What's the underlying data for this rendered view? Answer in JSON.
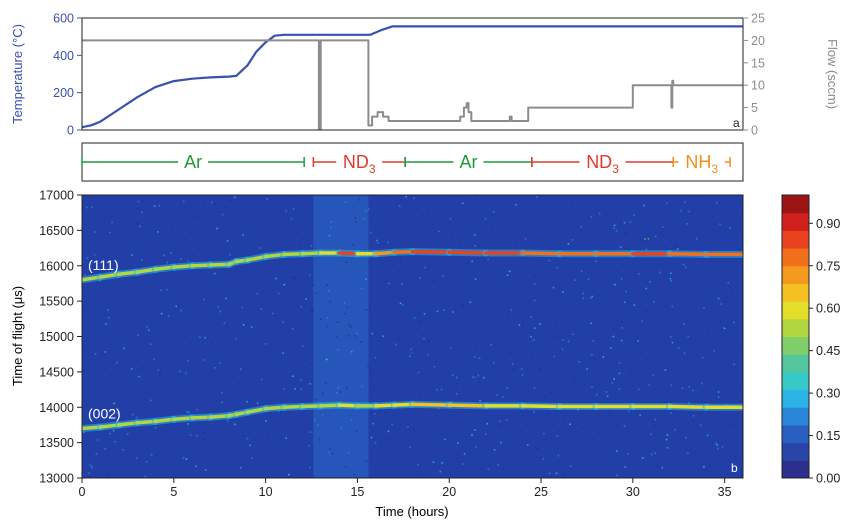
{
  "colors": {
    "temperature": "#3a50b0",
    "flow": "#8c8c8c",
    "ar": "#1f9a3a",
    "nd3": "#e23a2a",
    "nh3": "#f0901e",
    "axis": "#222222",
    "heat_background": "#223fa8",
    "heat_stripe": "#2a6ac6"
  },
  "chart_data": [
    {
      "type": "line",
      "panel_label": "a",
      "xlim": [
        0,
        36
      ],
      "ylabel_left": "Temperature (°C)",
      "ylabel_right": "Flow (sccm)",
      "ylim_left": [
        0,
        600
      ],
      "ylim_right": [
        0,
        25
      ],
      "yticks_left": [
        "0",
        "200",
        "400",
        "600"
      ],
      "yticks_right": [
        "0",
        "5",
        "10",
        "15",
        "20",
        "25"
      ],
      "series": [
        {
          "axis": "left",
          "x": [
            0,
            0.5,
            1,
            2,
            3,
            4,
            5,
            6,
            7,
            8,
            8.4,
            9,
            9.5,
            10,
            10.5,
            11,
            12,
            13,
            14,
            15,
            15.7,
            16.3,
            16.9,
            18,
            20,
            25,
            30,
            36
          ],
          "y": [
            15,
            25,
            45,
            110,
            175,
            230,
            262,
            275,
            282,
            286,
            290,
            345,
            420,
            470,
            505,
            510,
            510,
            510,
            510,
            510,
            510,
            535,
            555,
            555,
            555,
            555,
            555,
            555
          ]
        },
        {
          "axis": "right",
          "x": [
            0,
            12.9,
            12.9,
            13.0,
            13.0,
            15.6,
            15.6,
            15.8,
            15.8,
            16.1,
            16.1,
            16.4,
            16.4,
            16.7,
            16.7,
            17.0,
            17.0,
            20.6,
            20.6,
            20.8,
            20.8,
            20.95,
            20.95,
            21.05,
            21.05,
            21.2,
            21.2,
            21.3,
            21.3,
            23.3,
            23.3,
            23.4,
            23.4,
            24.3,
            24.3,
            30.0,
            30.0,
            32.1,
            32.1,
            32.15,
            32.15,
            32.2,
            32.2,
            36
          ],
          "y": [
            20,
            20,
            0,
            0,
            20,
            20,
            1,
            1,
            3,
            3,
            4,
            4,
            3,
            3,
            2,
            2,
            2,
            2,
            3,
            3,
            5,
            5,
            6,
            6,
            4,
            4,
            2,
            2,
            2,
            2,
            3,
            3,
            2,
            2,
            5,
            5,
            10,
            10,
            5,
            5,
            11,
            11,
            10,
            10
          ]
        }
      ]
    },
    {
      "type": "heatmap",
      "panel_label": "b",
      "xlabel": "Time (hours)",
      "ylabel": "Time of flight (μs)",
      "xlim": [
        0,
        36
      ],
      "ylim": [
        13000,
        17000
      ],
      "xticks": [
        "0",
        "5",
        "10",
        "15",
        "20",
        "25",
        "30",
        "35"
      ],
      "yticks": [
        "13000",
        "13500",
        "14000",
        "14500",
        "15000",
        "15500",
        "16000",
        "16500",
        "17000"
      ],
      "colorbar": {
        "range": [
          0,
          1
        ],
        "ticks": [
          "0.00",
          "0.15",
          "0.30",
          "0.45",
          "0.60",
          "0.75",
          "0.90"
        ],
        "colors": [
          "#2b2e8c",
          "#2a45a8",
          "#2a5fc2",
          "#2a86d8",
          "#2bb2e6",
          "#36c9c8",
          "#54c69e",
          "#80ce6a",
          "#b2d640",
          "#e2de2a",
          "#f4c022",
          "#f5981e",
          "#f0701c",
          "#e8421e",
          "#d0211c",
          "#9c1414"
        ]
      },
      "peaks": [
        {
          "label": "(111)",
          "x": [
            0,
            1,
            2,
            3,
            4,
            5,
            6,
            7,
            8,
            8.4,
            9,
            10,
            11,
            12,
            13,
            14,
            15,
            16,
            17,
            18,
            20,
            22,
            24,
            26,
            28,
            30,
            32,
            34,
            36
          ],
          "y": [
            15800,
            15840,
            15880,
            15910,
            15950,
            15980,
            16000,
            16010,
            16020,
            16060,
            16080,
            16130,
            16160,
            16170,
            16180,
            16180,
            16170,
            16170,
            16190,
            16200,
            16190,
            16180,
            16180,
            16170,
            16170,
            16170,
            16170,
            16160,
            16160
          ],
          "intensity": [
            0.55,
            0.55,
            0.55,
            0.55,
            0.55,
            0.55,
            0.55,
            0.55,
            0.55,
            0.55,
            0.55,
            0.55,
            0.55,
            0.55,
            0.6,
            0.85,
            0.6,
            0.7,
            0.8,
            0.85,
            0.85,
            0.82,
            0.8,
            0.8,
            0.8,
            0.82,
            0.8,
            0.78,
            0.75
          ]
        },
        {
          "label": "(002)",
          "x": [
            0,
            1,
            2,
            3,
            4,
            5,
            6,
            7,
            8,
            8.4,
            9,
            10,
            11,
            12,
            13,
            14,
            15,
            16,
            17,
            18,
            20,
            22,
            24,
            26,
            28,
            30,
            32,
            34,
            36
          ],
          "y": [
            13700,
            13720,
            13750,
            13780,
            13800,
            13830,
            13850,
            13860,
            13880,
            13900,
            13930,
            13980,
            14000,
            14010,
            14020,
            14030,
            14020,
            14020,
            14030,
            14040,
            14030,
            14020,
            14020,
            14010,
            14010,
            14010,
            14010,
            14000,
            14000
          ],
          "intensity": [
            0.5,
            0.5,
            0.5,
            0.5,
            0.5,
            0.5,
            0.5,
            0.5,
            0.5,
            0.5,
            0.5,
            0.5,
            0.5,
            0.5,
            0.55,
            0.6,
            0.55,
            0.6,
            0.62,
            0.65,
            0.65,
            0.62,
            0.62,
            0.62,
            0.62,
            0.62,
            0.62,
            0.6,
            0.6
          ]
        }
      ]
    }
  ],
  "gas_bar": [
    {
      "label": "Ar",
      "sub": "",
      "start": 0,
      "end": 12.1,
      "color_key": "ar"
    },
    {
      "label": "ND",
      "sub": "3",
      "start": 12.6,
      "end": 17.6,
      "color_key": "nd3"
    },
    {
      "label": "Ar",
      "sub": "",
      "start": 17.6,
      "end": 24.5,
      "color_key": "ar"
    },
    {
      "label": "ND",
      "sub": "3",
      "start": 24.5,
      "end": 32.2,
      "color_key": "nd3"
    },
    {
      "label": "NH",
      "sub": "3",
      "start": 32.2,
      "end": 35.3,
      "color_key": "nh3"
    }
  ]
}
